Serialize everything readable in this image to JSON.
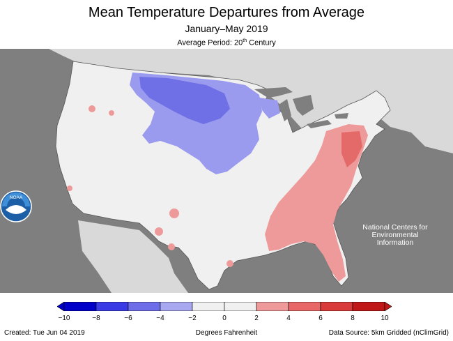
{
  "title": "Mean Temperature Departures from Average",
  "subtitle": "January–May 2019",
  "average_period": {
    "prefix": "Average Period: 20",
    "suffix": "th",
    "tail": " Century"
  },
  "logo": {
    "text": "NOAA",
    "icon": "noaa-logo"
  },
  "center_name": [
    "National Centers for",
    "Environmental",
    "Information"
  ],
  "legend": {
    "unit_label": "Degrees Fahrenheit",
    "ticks": [
      "−10",
      "−8",
      "−6",
      "−4",
      "−2",
      "0",
      "2",
      "4",
      "6",
      "8",
      "10"
    ],
    "colors": [
      "#0000c8",
      "#3b3be6",
      "#6e6ee8",
      "#a8a8f0",
      "#f0f0f0",
      "#f0f0f0",
      "#ef9a9a",
      "#e86868",
      "#d93a3a",
      "#c01818"
    ]
  },
  "footer": {
    "created": "Created: Tue Jun 04 2019",
    "source": "Data Source: 5km Gridded (nClimGrid)"
  },
  "colors": {
    "background": "#7f7f7f",
    "land": "#f0f0f0",
    "neighbor_land": "#d9d9d9",
    "cold": "#9a9aee",
    "cold_strong": "#6f6fe6",
    "warm": "#ee9a9a",
    "warm_strong": "#e46a6a"
  }
}
